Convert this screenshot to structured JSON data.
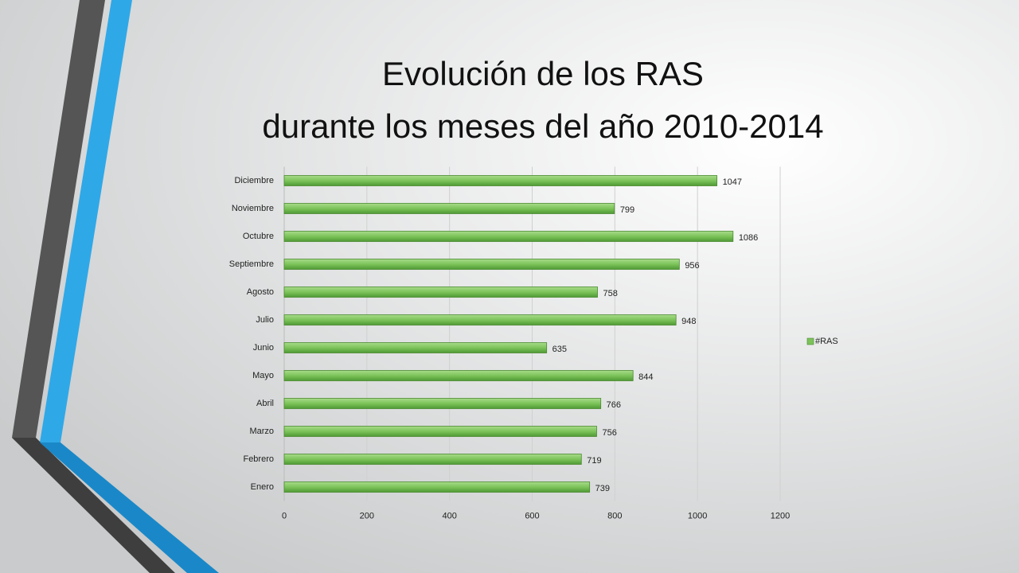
{
  "chart_data": {
    "type": "bar",
    "orientation": "horizontal",
    "title": [
      "Evolución de los RAS",
      "durante los meses del año 2010-2014"
    ],
    "categories": [
      "Enero",
      "Febrero",
      "Marzo",
      "Abril",
      "Mayo",
      "Junio",
      "Julio",
      "Agosto",
      "Septiembre",
      "Octubre",
      "Noviembre",
      "Diciembre"
    ],
    "series": [
      {
        "name": "#RAS",
        "color": "#7cc35a",
        "values": [
          739,
          719,
          756,
          766,
          844,
          635,
          948,
          758,
          956,
          1086,
          799,
          1047
        ]
      }
    ],
    "xlim": [
      0,
      1200
    ],
    "xticks": [
      0,
      200,
      400,
      600,
      800,
      1000,
      1200
    ],
    "grid": true,
    "legend": "right"
  }
}
